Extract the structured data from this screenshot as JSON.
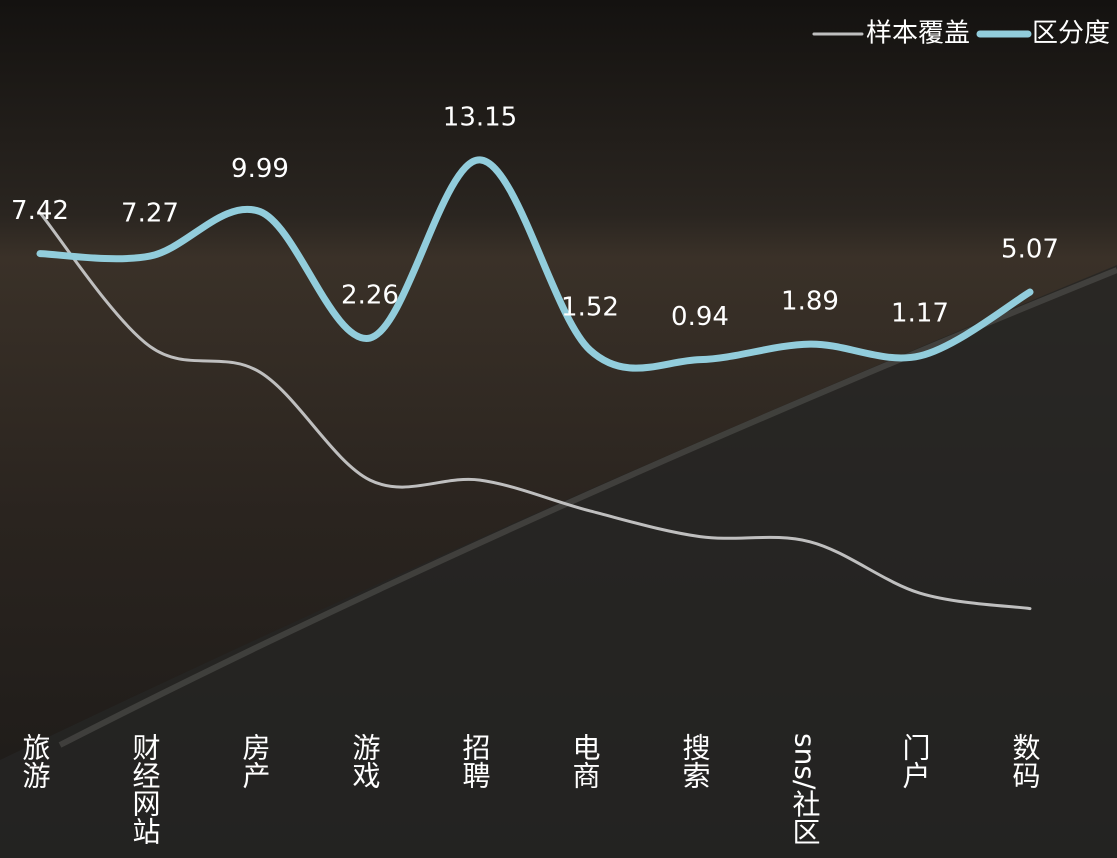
{
  "chart_data": {
    "type": "line",
    "categories": [
      "旅游",
      "财经网站",
      "房产",
      "游戏",
      "招聘",
      "电商",
      "搜索",
      "sns/社区",
      "门户",
      "数码"
    ],
    "series": [
      {
        "name": "样本覆盖",
        "color": "#bfbfbf",
        "axis": "y2",
        "values": [
          87,
          61,
          56,
          35,
          35,
          29,
          24,
          23,
          13,
          10
        ]
      },
      {
        "name": "区分度",
        "color": "#92cddc",
        "values": [
          7.42,
          7.27,
          9.99,
          2.26,
          13.15,
          1.52,
          0.94,
          1.89,
          1.17,
          5.07
        ]
      }
    ],
    "ylim": [
      0,
      14
    ],
    "y2lim": [
      0,
      100
    ],
    "legend": "top-right"
  }
}
